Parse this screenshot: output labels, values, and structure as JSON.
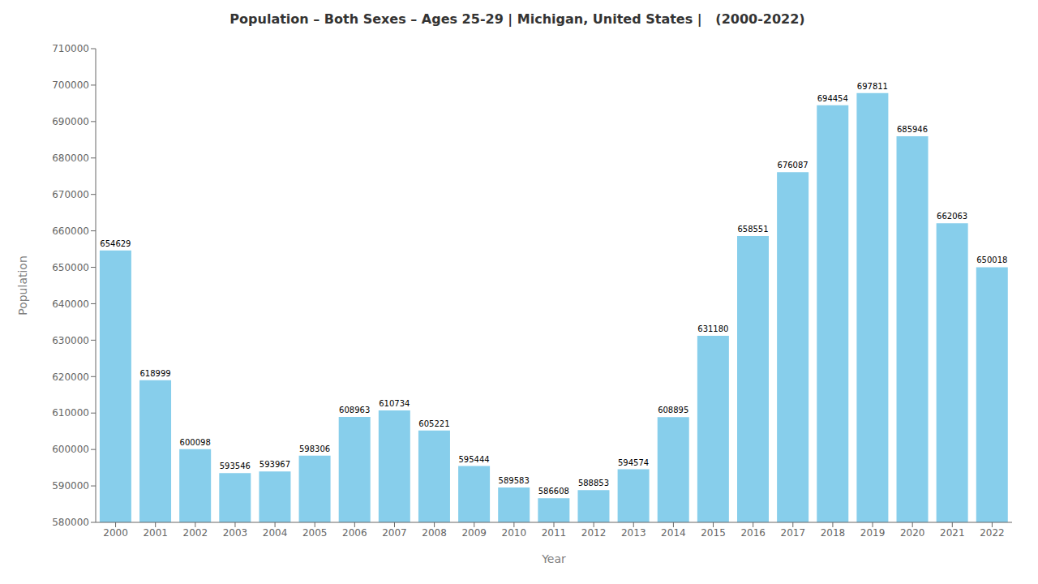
{
  "chart_data": {
    "type": "bar",
    "title": "Population – Both Sexes – Ages 25-29 | Michigan, United States |   (2000-2022)",
    "xlabel": "Year",
    "ylabel": "Population",
    "categories": [
      "2000",
      "2001",
      "2002",
      "2003",
      "2004",
      "2005",
      "2006",
      "2007",
      "2008",
      "2009",
      "2010",
      "2011",
      "2012",
      "2013",
      "2014",
      "2015",
      "2016",
      "2017",
      "2018",
      "2019",
      "2020",
      "2021",
      "2022"
    ],
    "values": [
      654629,
      618999,
      600098,
      593546,
      593967,
      598306,
      608963,
      610734,
      605221,
      595444,
      589583,
      586608,
      588853,
      594574,
      608895,
      631180,
      658551,
      676087,
      694454,
      697811,
      685946,
      662063,
      650018
    ],
    "color": "#87CEEB",
    "ylim": [
      580000,
      710000
    ],
    "yticks": [
      580000,
      590000,
      600000,
      610000,
      620000,
      630000,
      640000,
      650000,
      660000,
      670000,
      680000,
      690000,
      700000,
      710000
    ],
    "grid": false,
    "data_labels": true
  }
}
